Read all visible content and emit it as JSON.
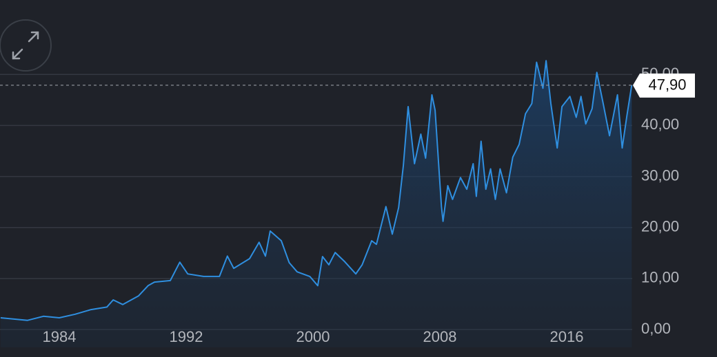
{
  "chart_data": {
    "type": "area",
    "x": [
      1980.3,
      1982.0,
      1983.0,
      1984.0,
      1985.0,
      1986.0,
      1987.0,
      1987.4,
      1988.0,
      1989.0,
      1989.6,
      1990.0,
      1991.0,
      1991.6,
      1992.1,
      1993.1,
      1994.1,
      1994.6,
      1995.0,
      1996.0,
      1996.6,
      1997.0,
      1997.3,
      1998.0,
      1998.5,
      1999.0,
      1999.8,
      2000.3,
      2000.6,
      2001.0,
      2001.4,
      2002.0,
      2002.7,
      2003.1,
      2003.7,
      2004.0,
      2004.6,
      2005.0,
      2005.4,
      2005.7,
      2006.0,
      2006.4,
      2006.8,
      2007.1,
      2007.5,
      2007.7,
      2008.1,
      2008.2,
      2008.5,
      2008.8,
      2009.3,
      2009.7,
      2010.1,
      2010.3,
      2010.6,
      2010.9,
      2011.2,
      2011.5,
      2011.8,
      2012.2,
      2012.6,
      2013.0,
      2013.4,
      2013.8,
      2014.1,
      2014.5,
      2014.7,
      2015.0,
      2015.4,
      2015.7,
      2016.2,
      2016.6,
      2016.9,
      2017.2,
      2017.6,
      2017.9,
      2018.3,
      2018.7,
      2019.2,
      2019.5,
      2019.8,
      2020.1
    ],
    "series": [
      {
        "color": "#2f8fe0",
        "values": [
          2.3,
          1.8,
          2.6,
          2.3,
          3.0,
          3.9,
          4.4,
          5.8,
          4.9,
          6.6,
          8.6,
          9.3,
          9.6,
          13.2,
          10.9,
          10.4,
          10.4,
          14.4,
          12.0,
          13.9,
          17.1,
          14.4,
          19.3,
          17.4,
          13.1,
          11.3,
          10.4,
          8.6,
          14.3,
          12.7,
          15.1,
          13.3,
          10.9,
          12.7,
          17.4,
          16.7,
          24.1,
          18.7,
          23.9,
          32.2,
          43.7,
          32.5,
          38.3,
          33.6,
          46.0,
          43.0,
          24.1,
          21.2,
          28.2,
          25.5,
          29.8,
          27.5,
          32.5,
          26.1,
          36.9,
          27.5,
          31.5,
          25.5,
          31.5,
          26.8,
          33.8,
          36.3,
          42.3,
          44.3,
          52.4,
          47.3,
          52.7,
          44.3,
          35.6,
          43.7,
          45.7,
          41.6,
          45.7,
          40.3,
          43.3,
          50.4,
          44.3,
          38.0,
          46.0,
          35.6,
          42.0,
          47.9
        ]
      }
    ],
    "xlim": [
      1980.26,
      2020.13
    ],
    "xticks": [
      1984,
      1992,
      2000,
      2008,
      2016
    ],
    "ylim": [
      -3.5,
      64.6
    ],
    "yticks": [
      {
        "value": 0,
        "label": "0,00"
      },
      {
        "value": 10,
        "label": "10,00"
      },
      {
        "value": 20,
        "label": "20,00"
      },
      {
        "value": 30,
        "label": "30,00"
      },
      {
        "value": 40,
        "label": "40,00"
      },
      {
        "value": 50,
        "label": "50,00"
      }
    ],
    "last_price": {
      "value": 47.9,
      "label": "47,90"
    },
    "grid": true
  }
}
